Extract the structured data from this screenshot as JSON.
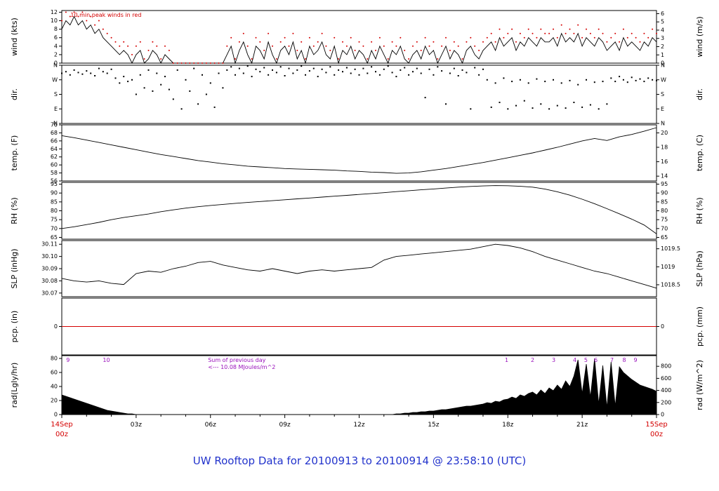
{
  "title": "UW Rooftop Data for 20100913  to  20100914 @ 23:58:10  (UTC)",
  "colors": {
    "red": "#d40000",
    "blue": "#2233cc",
    "purple": "#9911bb",
    "black": "#000000"
  },
  "x_axis": {
    "range_hours": [
      0,
      24
    ],
    "major_ticks": [
      {
        "t": 3,
        "label": "03z"
      },
      {
        "t": 6,
        "label": "06z"
      },
      {
        "t": 9,
        "label": "09z"
      },
      {
        "t": 12,
        "label": "12z"
      },
      {
        "t": 15,
        "label": "15z"
      },
      {
        "t": 18,
        "label": "18z"
      },
      {
        "t": 21,
        "label": "21z"
      }
    ],
    "start_label": {
      "line1": "14Sep",
      "line2": "00z"
    },
    "end_label": {
      "line1": "15Sep",
      "line2": "00z"
    }
  },
  "chart_data": [
    {
      "id": "wind",
      "type": "wind",
      "ylabel_left": "wind (kts)",
      "ylabel_right": "wind (m/s)",
      "yrange": [
        0,
        12.4
      ],
      "dt_minutes": 10,
      "yticks_left": [
        {
          "v": 0,
          "label": "0"
        },
        {
          "v": 2,
          "label": "2"
        },
        {
          "v": 4,
          "label": "4"
        },
        {
          "v": 6,
          "label": "6"
        },
        {
          "v": 8,
          "label": "8"
        },
        {
          "v": 10,
          "label": "10"
        },
        {
          "v": 12,
          "label": "12"
        }
      ],
      "yticks_right": [
        {
          "v": 0,
          "label": "0"
        },
        {
          "v": 1.94,
          "label": "1"
        },
        {
          "v": 3.89,
          "label": "2"
        },
        {
          "v": 5.83,
          "label": "3"
        },
        {
          "v": 7.78,
          "label": "4"
        },
        {
          "v": 9.72,
          "label": "5"
        },
        {
          "v": 11.66,
          "label": "6"
        }
      ],
      "note": {
        "t": 0.35,
        "color": "red",
        "lines": [
          "10 min peak winds in red"
        ]
      },
      "values": [
        8,
        10,
        9,
        11,
        9,
        10,
        8,
        9,
        7,
        8,
        6,
        5,
        4,
        3,
        2,
        3,
        2,
        0,
        2,
        3,
        0,
        1,
        3,
        2,
        0,
        2,
        1,
        0,
        0,
        0,
        0,
        0,
        0,
        0,
        0,
        0,
        0,
        0,
        0,
        0,
        2,
        4,
        0,
        3,
        5,
        2,
        0,
        4,
        3,
        1,
        5,
        2,
        0,
        3,
        4,
        2,
        5,
        1,
        3,
        0,
        4,
        2,
        3,
        5,
        2,
        1,
        4,
        0,
        3,
        2,
        4,
        1,
        3,
        2,
        0,
        3,
        1,
        4,
        2,
        0,
        3,
        2,
        4,
        1,
        0,
        2,
        3,
        1,
        4,
        2,
        3,
        0,
        2,
        4,
        1,
        3,
        2,
        0,
        3,
        4,
        2,
        1,
        3,
        4,
        5,
        3,
        6,
        4,
        5,
        6,
        3,
        5,
        4,
        6,
        5,
        4,
        6,
        5,
        5,
        6,
        4,
        7,
        5,
        6,
        5,
        7,
        4,
        6,
        5,
        4,
        6,
        5,
        3,
        4,
        5,
        3,
        6,
        4,
        5,
        4,
        3,
        5,
        4,
        6,
        5
      ],
      "peaks": [
        10,
        12,
        11,
        12,
        11,
        12,
        10,
        11,
        9,
        10,
        8,
        7,
        6,
        5,
        4,
        5,
        4,
        2,
        4,
        5,
        1,
        3,
        5,
        4,
        1,
        4,
        3,
        0,
        0,
        0,
        0,
        0,
        0,
        0,
        0,
        0,
        0,
        0,
        0,
        0,
        4,
        6,
        1,
        5,
        7,
        4,
        1,
        6,
        5,
        3,
        7,
        4,
        1,
        5,
        6,
        4,
        7,
        3,
        5,
        1,
        6,
        4,
        5,
        7,
        4,
        3,
        6,
        1,
        5,
        4,
        6,
        3,
        5,
        4,
        1,
        5,
        3,
        6,
        4,
        1,
        5,
        4,
        6,
        3,
        1,
        4,
        5,
        3,
        6,
        4,
        5,
        1,
        4,
        6,
        3,
        5,
        4,
        1,
        5,
        6,
        4,
        3,
        5,
        6,
        7,
        5,
        8,
        6,
        7,
        8,
        5,
        7,
        6,
        8,
        7,
        6,
        8,
        7,
        7,
        8,
        6,
        9,
        7,
        8,
        7,
        9,
        6,
        8,
        7,
        6,
        8,
        7,
        5,
        6,
        7,
        5,
        8,
        6,
        7,
        6,
        5,
        7,
        6,
        8,
        7
      ]
    },
    {
      "id": "direction",
      "type": "scatter",
      "ylabel_left": "dir.",
      "ylabel_right": "dir.",
      "yrange": [
        0,
        360
      ],
      "dt_minutes": 10,
      "yticks_left": [
        {
          "v": 360,
          "label": "N"
        },
        {
          "v": 270,
          "label": "W"
        },
        {
          "v": 180,
          "label": "S"
        },
        {
          "v": 90,
          "label": "E"
        },
        {
          "v": 0,
          "label": "N"
        }
      ],
      "yticks_right": [
        {
          "v": 360,
          "label": "N"
        },
        {
          "v": 270,
          "label": "W"
        },
        {
          "v": 180,
          "label": "S"
        },
        {
          "v": 90,
          "label": "E"
        },
        {
          "v": 0,
          "label": "N"
        }
      ],
      "values": [
        310,
        320,
        300,
        330,
        315,
        305,
        325,
        310,
        295,
        340,
        320,
        310,
        335,
        280,
        250,
        290,
        260,
        270,
        180,
        300,
        220,
        330,
        200,
        310,
        240,
        290,
        210,
        150,
        330,
        90,
        270,
        200,
        340,
        120,
        300,
        180,
        250,
        100,
        310,
        220,
        330,
        350,
        300,
        340,
        310,
        355,
        290,
        335,
        320,
        345,
        300,
        330,
        315,
        350,
        295,
        340,
        310,
        330,
        355,
        300,
        325,
        340,
        290,
        335,
        315,
        350,
        300,
        330,
        320,
        345,
        310,
        335,
        300,
        340,
        310,
        350,
        320,
        300,
        335,
        355,
        315,
        290,
        330,
        345,
        300,
        320,
        340,
        310,
        160,
        335,
        300,
        350,
        325,
        120,
        310,
        340,
        295,
        330,
        315,
        90,
        345,
        300,
        335,
        270,
        100,
        250,
        130,
        280,
        90,
        260,
        110,
        270,
        140,
        250,
        95,
        275,
        120,
        260,
        90,
        270,
        110,
        250,
        95,
        265,
        130,
        240,
        100,
        270,
        115,
        255,
        90,
        260,
        120,
        280,
        260,
        290,
        270,
        255,
        285,
        265,
        275,
        260,
        280,
        270,
        265
      ]
    },
    {
      "id": "temperature",
      "type": "line",
      "ylabel_left": "temp. (F)",
      "ylabel_right": "temp. (C)",
      "yrange": [
        56,
        70
      ],
      "dt_minutes": 30,
      "yticks_left": [
        {
          "v": 56,
          "label": "56"
        },
        {
          "v": 58,
          "label": "58"
        },
        {
          "v": 60,
          "label": "60"
        },
        {
          "v": 62,
          "label": "62"
        },
        {
          "v": 64,
          "label": "64"
        },
        {
          "v": 66,
          "label": "66"
        },
        {
          "v": 68,
          "label": "68"
        },
        {
          "v": 70,
          "label": "70"
        }
      ],
      "yticks_right": [
        {
          "v": 57.2,
          "label": "14"
        },
        {
          "v": 60.8,
          "label": "16"
        },
        {
          "v": 64.4,
          "label": "18"
        },
        {
          "v": 68,
          "label": "20"
        }
      ],
      "values": [
        67.3,
        66.8,
        66.2,
        65.6,
        65,
        64.4,
        63.8,
        63.2,
        62.6,
        62.1,
        61.6,
        61.1,
        60.7,
        60.3,
        60,
        59.7,
        59.5,
        59.3,
        59.1,
        59,
        58.9,
        58.8,
        58.7,
        58.5,
        58.4,
        58.2,
        58.1,
        57.9,
        58,
        58.3,
        58.7,
        59.1,
        59.6,
        60.1,
        60.6,
        61.2,
        61.8,
        62.4,
        63,
        63.7,
        64.4,
        65.2,
        66,
        66.6,
        66.1,
        67,
        67.6,
        68.4,
        69.3
      ]
    },
    {
      "id": "humidity",
      "type": "line",
      "ylabel_left": "RH (%)",
      "ylabel_right": "RH (%)",
      "yrange": [
        64,
        96
      ],
      "dt_minutes": 30,
      "yticks_left": [
        {
          "v": 65,
          "label": "65"
        },
        {
          "v": 70,
          "label": "70"
        },
        {
          "v": 75,
          "label": "75"
        },
        {
          "v": 80,
          "label": "80"
        },
        {
          "v": 85,
          "label": "85"
        },
        {
          "v": 90,
          "label": "90"
        },
        {
          "v": 95,
          "label": "95"
        }
      ],
      "yticks_right": [
        {
          "v": 65,
          "label": "65"
        },
        {
          "v": 70,
          "label": "70"
        },
        {
          "v": 75,
          "label": "75"
        },
        {
          "v": 80,
          "label": "80"
        },
        {
          "v": 85,
          "label": "85"
        },
        {
          "v": 90,
          "label": "90"
        },
        {
          "v": 95,
          "label": "95"
        }
      ],
      "values": [
        70,
        71,
        72.2,
        73.5,
        75,
        76.2,
        77.2,
        78.2,
        79.5,
        80.5,
        81.5,
        82.3,
        83,
        83.6,
        84.2,
        84.7,
        85.2,
        85.7,
        86.2,
        86.7,
        87.2,
        87.7,
        88.2,
        88.7,
        89.2,
        89.7,
        90.2,
        90.8,
        91.3,
        91.8,
        92.3,
        92.8,
        93.3,
        93.7,
        94,
        94.2,
        94.1,
        93.8,
        93.3,
        92.2,
        90.7,
        88.8,
        86.5,
        84,
        81.2,
        78.3,
        75.3,
        72,
        67
      ]
    },
    {
      "id": "pressure",
      "type": "line",
      "ylabel_left": "SLP (inHg)",
      "ylabel_right": "SLP (hPa)",
      "yrange": [
        30.067,
        30.113
      ],
      "dt_minutes": 30,
      "yticks_left": [
        {
          "v": 30.07,
          "label": "30.07"
        },
        {
          "v": 30.08,
          "label": "30.08"
        },
        {
          "v": 30.09,
          "label": "30.09"
        },
        {
          "v": 30.1,
          "label": "30.10"
        },
        {
          "v": 30.11,
          "label": "30.11"
        }
      ],
      "yticks_right": [
        {
          "v": 30.0768,
          "label": "1018.5"
        },
        {
          "v": 30.0915,
          "label": "1019"
        },
        {
          "v": 30.1063,
          "label": "1019.5"
        }
      ],
      "values": [
        30.082,
        30.08,
        30.079,
        30.08,
        30.078,
        30.077,
        30.086,
        30.088,
        30.087,
        30.09,
        30.092,
        30.095,
        30.096,
        30.093,
        30.091,
        30.089,
        30.088,
        30.09,
        30.088,
        30.086,
        30.088,
        30.089,
        30.088,
        30.089,
        30.09,
        30.091,
        30.097,
        30.1,
        30.101,
        30.102,
        30.103,
        30.104,
        30.105,
        30.106,
        30.108,
        30.11,
        30.109,
        30.107,
        30.104,
        30.1,
        30.097,
        30.094,
        30.091,
        30.088,
        30.086,
        30.083,
        30.08,
        30.077,
        30.074
      ]
    },
    {
      "id": "precip",
      "type": "flatline",
      "ylabel_left": "pcp. (in)",
      "ylabel_right": "pcp. (mm)",
      "yrange": [
        -1,
        1
      ],
      "line_value": 0,
      "yticks_left": [
        {
          "v": 0,
          "label": "0"
        }
      ],
      "yticks_right": [
        {
          "v": 0,
          "label": "0"
        }
      ]
    },
    {
      "id": "radiation",
      "type": "area",
      "ylabel_left": "rad(Lgly/hr)",
      "ylabel_right": "rad (W/m^2)",
      "yrange": [
        0,
        84
      ],
      "dt_minutes": 10,
      "yticks_left": [
        {
          "v": 0,
          "label": "0"
        },
        {
          "v": 20,
          "label": "20"
        },
        {
          "v": 40,
          "label": "40"
        },
        {
          "v": 60,
          "label": "60"
        },
        {
          "v": 80,
          "label": "80"
        }
      ],
      "yticks_right": [
        {
          "v": 0,
          "label": "0"
        },
        {
          "v": 17.2,
          "label": "200"
        },
        {
          "v": 34.4,
          "label": "400"
        },
        {
          "v": 51.6,
          "label": "600"
        },
        {
          "v": 68.8,
          "label": "800"
        }
      ],
      "note": {
        "t": 5.9,
        "color": "purple",
        "lines": [
          "Sum of previous day",
          "<--- 10.08 MJoules/m^2"
        ]
      },
      "markers": [
        {
          "label": "9",
          "t": 0.25
        },
        {
          "label": "10",
          "t": 1.8
        },
        {
          "label": "1",
          "t": 17.95
        },
        {
          "label": "2",
          "t": 19.0
        },
        {
          "label": "3",
          "t": 19.85
        },
        {
          "label": "4",
          "t": 20.7
        },
        {
          "label": "5",
          "t": 21.15
        },
        {
          "label": "6",
          "t": 21.55
        },
        {
          "label": "7",
          "t": 22.2
        },
        {
          "label": "8",
          "t": 22.7
        },
        {
          "label": "9",
          "t": 23.15
        }
      ],
      "values": [
        28,
        26,
        24,
        22,
        20,
        18,
        16,
        14,
        12,
        10,
        8,
        6,
        5,
        4,
        3,
        2,
        1,
        1,
        0,
        0,
        0,
        0,
        0,
        0,
        0,
        0,
        0,
        0,
        0,
        0,
        0,
        0,
        0,
        0,
        0,
        0,
        0,
        0,
        0,
        0,
        0,
        0,
        0,
        0,
        0,
        0,
        0,
        0,
        0,
        0,
        0,
        0,
        0,
        0,
        0,
        0,
        0,
        0,
        0,
        0,
        0,
        0,
        0,
        0,
        0,
        0,
        0,
        0,
        0,
        0,
        0,
        0,
        0,
        0,
        0,
        0,
        0,
        0,
        0,
        0,
        0,
        1,
        1,
        2,
        2,
        3,
        3,
        4,
        4,
        5,
        5,
        6,
        7,
        7,
        8,
        9,
        10,
        11,
        12,
        12,
        13,
        14,
        15,
        17,
        16,
        19,
        18,
        21,
        22,
        25,
        23,
        28,
        26,
        30,
        32,
        28,
        35,
        30,
        38,
        34,
        42,
        36,
        48,
        40,
        55,
        78,
        30,
        72,
        25,
        80,
        15,
        70,
        10,
        75,
        12,
        68,
        60,
        55,
        50,
        46,
        42,
        40,
        38,
        36,
        33
      ]
    }
  ]
}
